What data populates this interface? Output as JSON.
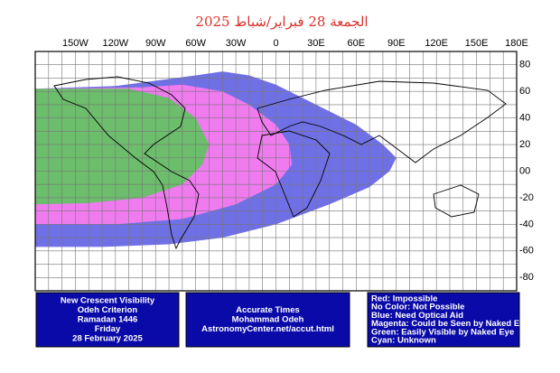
{
  "title": "الجمعة 28 فبراير/شباط 2025",
  "longitude_labels": [
    "150W",
    "120W",
    "90W",
    "60W",
    "30W",
    "0",
    "30E",
    "60E",
    "90E",
    "120E",
    "150E",
    "180E"
  ],
  "latitude_labels": [
    "80",
    "60",
    "40",
    "20",
    "00",
    "-20",
    "-40",
    "-60",
    "-80"
  ],
  "boxes": [
    {
      "lines": [
        "New Crescent Visibility",
        "Odeh Criterion",
        "Ramadan 1446",
        "Friday",
        "28 February 2025"
      ]
    },
    {
      "lines": [
        "Accurate Times",
        "Mohammad Odeh",
        "AstronomyCenter.net/accut.html"
      ]
    },
    {
      "lines": [
        "Red: Impossible",
        "No Color: Not Possible",
        "Blue: Need Optical Aid",
        "Magenta: Could be Seen by Naked Eye",
        "Green: Easily Visible by Naked Eye",
        "Cyan: Unknown"
      ]
    }
  ]
}
